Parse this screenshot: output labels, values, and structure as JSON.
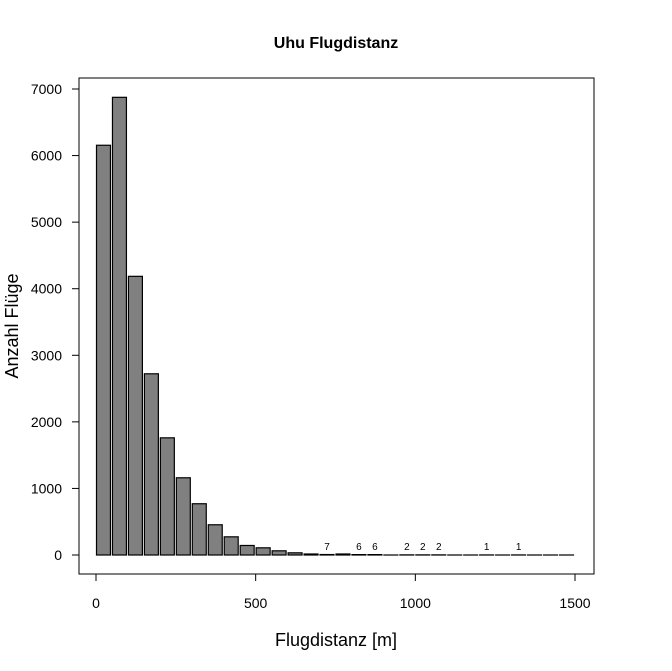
{
  "chart_data": {
    "type": "bar",
    "title": "Uhu Flugdistanz",
    "xlabel": "Flugdistanz [m]",
    "ylabel": "Anzahl Flüge",
    "bin_width": 50,
    "bins_start": [
      0,
      50,
      100,
      150,
      200,
      250,
      300,
      350,
      400,
      450,
      500,
      550,
      600,
      650,
      700,
      750,
      800,
      850,
      900,
      950,
      1000,
      1050,
      1100,
      1150,
      1200,
      1250,
      1300,
      1350,
      1400,
      1450
    ],
    "values": [
      6155,
      6875,
      4186,
      2722,
      1760,
      1160,
      770,
      454,
      273,
      143,
      108,
      63,
      33,
      15,
      7,
      15,
      6,
      6,
      0,
      2,
      2,
      2,
      0,
      0,
      1,
      0,
      1,
      0,
      0,
      0
    ],
    "data_labels": [
      null,
      null,
      null,
      null,
      null,
      null,
      null,
      null,
      null,
      null,
      null,
      null,
      null,
      null,
      "7",
      null,
      "6",
      "6",
      null,
      "2",
      "2",
      "2",
      null,
      null,
      "1",
      null,
      "1",
      null,
      null,
      null
    ],
    "xlim": [
      -50,
      1550
    ],
    "ylim": [
      -350,
      7200
    ],
    "x_ticks": [
      "0",
      "500",
      "1000",
      "1500"
    ],
    "x_tick_values": [
      0,
      500,
      1000,
      1500
    ],
    "y_ticks": [
      "0",
      "1000",
      "2000",
      "3000",
      "4000",
      "5000",
      "6000",
      "7000"
    ],
    "y_tick_values": [
      0,
      1000,
      2000,
      3000,
      4000,
      5000,
      6000,
      7000
    ],
    "grid": false,
    "bar_color": "#808080",
    "edge_color": "#000000"
  }
}
